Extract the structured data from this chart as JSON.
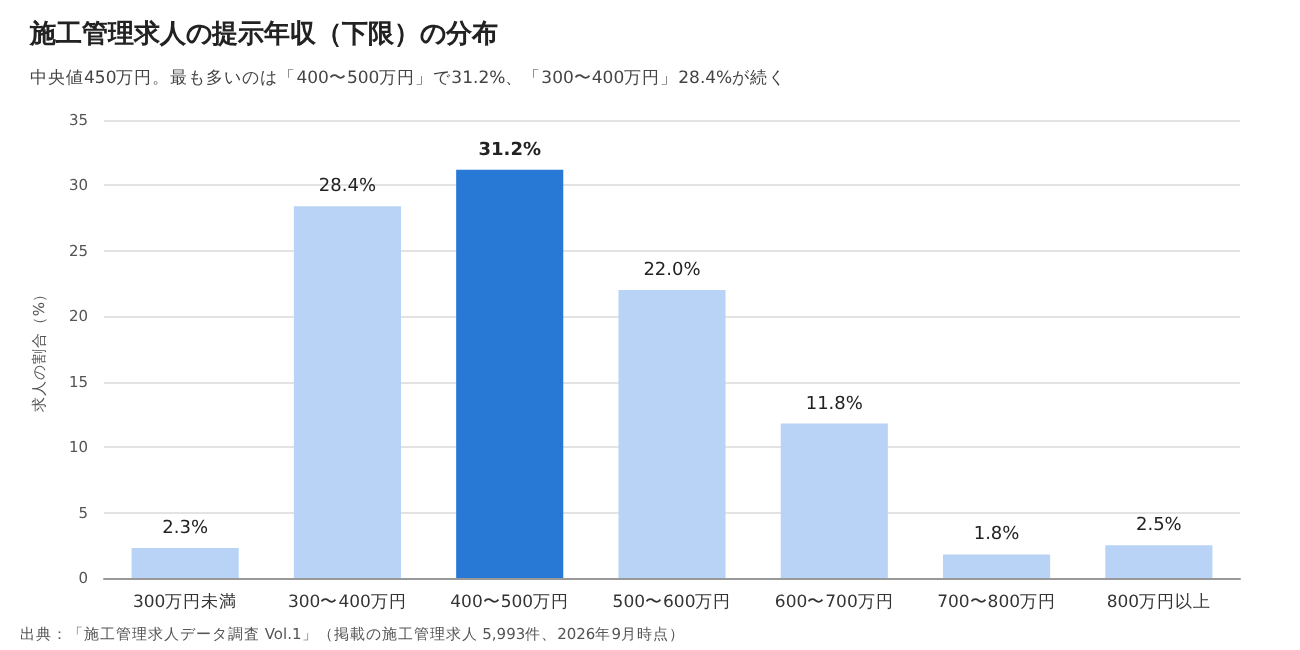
{
  "chart_data": {
    "type": "bar",
    "title": "施工管理求人の提示年収（下限）の分布",
    "subtitle": "中央値450万円。最も多いのは「400〜500万円」で31.2%、「300〜400万円」28.4%が続く",
    "ylabel": "求人の割合（%）",
    "categories": [
      "300万円未満",
      "300〜400万円",
      "400〜500万円",
      "500〜600万円",
      "600〜700万円",
      "700〜800万円",
      "800万円以上"
    ],
    "values": [
      2.3,
      28.4,
      31.2,
      22.0,
      11.8,
      1.8,
      2.5
    ],
    "colors": [
      "#b8d3f6",
      "#b8d3f6",
      "#2878d6",
      "#b8d3f6",
      "#b8d3f6",
      "#b8d3f6",
      "#b8d3f6"
    ],
    "value_labels": [
      "2.3%",
      "28.4%",
      "31.2%",
      "22.0%",
      "11.8%",
      "1.8%",
      "2.5%"
    ],
    "ylim": [
      0,
      35
    ],
    "yticks": [
      0,
      5,
      10,
      15,
      20,
      25,
      30,
      35
    ],
    "grid": "y",
    "annotations": [
      "出典：「施工管理求人データ調査 Vol.1」（掲載の施工管理求人 5,993件、2026年9月時点）"
    ]
  }
}
